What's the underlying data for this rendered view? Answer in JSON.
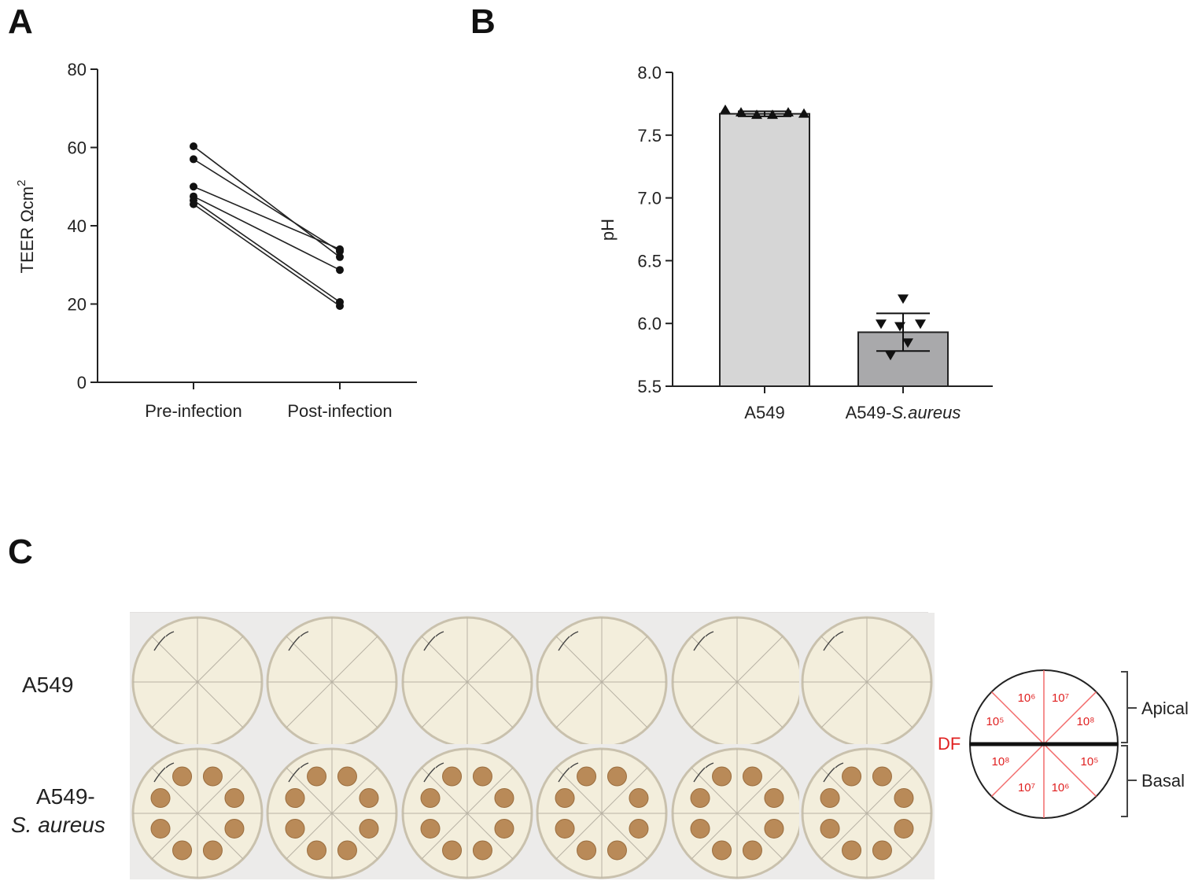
{
  "panels": {
    "a": "A",
    "b": "B",
    "c": "C"
  },
  "chart_data": [
    {
      "type": "line",
      "panel": "A",
      "ylabel": "TEER Ωcm",
      "ylabel_superscript": "2",
      "categories": [
        "Pre-infection",
        "Post-infection"
      ],
      "yticks": [
        0,
        20,
        40,
        60,
        80
      ],
      "ylim": [
        0,
        80
      ],
      "series": [
        {
          "values": [
            60.3,
            32.0
          ]
        },
        {
          "values": [
            57.0,
            33.5
          ]
        },
        {
          "values": [
            50.0,
            34.0
          ]
        },
        {
          "values": [
            47.5,
            28.7
          ]
        },
        {
          "values": [
            46.5,
            20.5
          ]
        },
        {
          "values": [
            45.5,
            19.5
          ]
        }
      ],
      "grid": false
    },
    {
      "type": "bar",
      "panel": "B",
      "ylabel": "pH",
      "categories": [
        "A549",
        "A549-"
      ],
      "category_italic_suffix": [
        "",
        "S.aureus"
      ],
      "values": [
        7.67,
        5.93
      ],
      "sd": [
        0.02,
        0.15
      ],
      "points": [
        [
          7.7,
          7.68,
          7.66,
          7.66,
          7.68,
          7.67
        ],
        [
          6.2,
          6.0,
          5.98,
          6.0,
          5.85,
          5.75
        ]
      ],
      "markers": [
        "triangle-up",
        "triangle-down"
      ],
      "bar_colors": [
        "#d6d6d6",
        "#a9a9ab"
      ],
      "yticks": [
        "5.5",
        "6.0",
        "6.5",
        "7.0",
        "7.5",
        "8.0"
      ],
      "ylim": [
        5.5,
        8.0
      ],
      "grid": false
    }
  ],
  "plates": {
    "row_labels": [
      "A549",
      "A549-",
      "S. aureus"
    ],
    "count_per_row": 6,
    "colony_counts": [
      0,
      8
    ],
    "agar_color": "#f3eedc",
    "colony_color": "#b98a58"
  },
  "schematic": {
    "df_label": "DF",
    "sectors_top": [
      "10⁶",
      "10⁷",
      "10⁵",
      "10⁸"
    ],
    "sectors_bottom": [
      "10⁸",
      "10⁵",
      "10⁷",
      "10⁶"
    ],
    "apical_label": "Apical",
    "basal_label": "Basal",
    "line_color": "#f26b6b",
    "text_color": "#e02020"
  }
}
